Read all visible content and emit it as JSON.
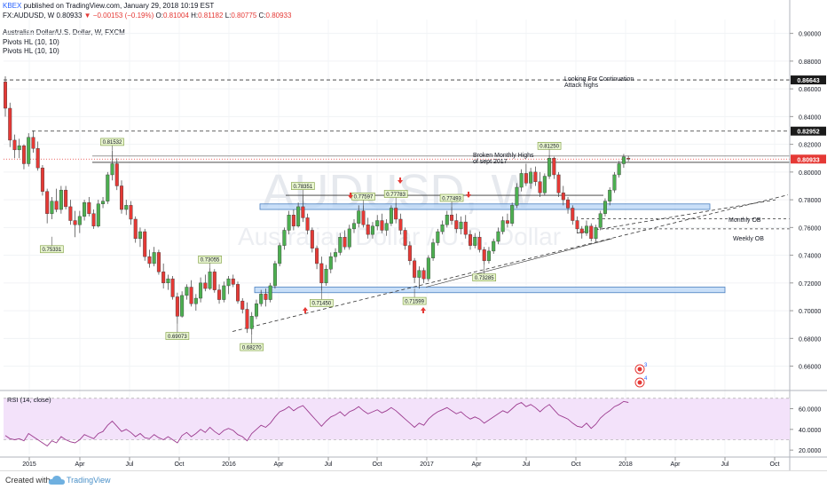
{
  "header": {
    "publisher": "KBEX",
    "published_text": "published on TradingView.com, January 29, 2018 10:19 EST",
    "symbol": "FX:AUDUSD, W",
    "last": "0.80933",
    "change": "−0.00153 (−0.19%)",
    "o_label": "O:",
    "o_value": "0.81004",
    "h_label": "H:",
    "h_value": "0.81182",
    "l_label": "L:",
    "l_value": "0.80775",
    "c_label": "C:",
    "c_value": "0.80933",
    "title": "Australian Dollar/U.S. Dollar, W, FXCM",
    "indicator1": "Pivots HL (10, 10)",
    "indicator2": "Pivots HL (10, 10)"
  },
  "watermark": {
    "ticker": "AUDUSD, W",
    "name": "Australian Dollar / U.S. Dollar"
  },
  "colors": {
    "up": "#4caf50",
    "down": "#e53935",
    "zone": "#b7d4f5",
    "zone_border": "#4a7fc0",
    "rsi": "#9c3b8f",
    "rsi_band": "#f3e2fa"
  },
  "annotations": {
    "continuation": [
      "Looking For Continuation",
      "Attack highs"
    ],
    "broken": [
      "Broken Monthly Highs",
      "of sept 2017"
    ],
    "monthly_ob": "Monthly OB",
    "weekly_ob": "Weekly OB"
  },
  "rsi": {
    "label": "RSI (14, close)",
    "ticks": [
      "60.0000",
      "40.0000",
      "20.0000"
    ]
  },
  "footer": {
    "created": "Created with",
    "brand": "TradingView"
  },
  "chart_data": {
    "type": "candlestick",
    "title": "Australian Dollar/U.S. Dollar, W, FXCM",
    "y_ticks": [
      "0.90000",
      "0.88000",
      "0.86000",
      "0.84000",
      "0.82000",
      "0.80000",
      "0.78000",
      "0.76000",
      "0.74000",
      "0.72000",
      "0.70000",
      "0.68000",
      "0.66000"
    ],
    "ylim": [
      0.645,
      0.91
    ],
    "x_labels": [
      "2015",
      "Apr",
      "Jul",
      "Oct",
      "2016",
      "Apr",
      "Jul",
      "Oct",
      "2017",
      "Apr",
      "Jul",
      "Oct",
      "2018",
      "Apr",
      "Jul",
      "Oct"
    ],
    "price_levels": [
      {
        "label": "0.86643",
        "value": 0.86643
      },
      {
        "label": "0.82952",
        "value": 0.82952
      },
      {
        "label": "0.80933",
        "value": 0.80933,
        "style": "last"
      }
    ],
    "pivot_labels": [
      {
        "label": "0.81532",
        "value": 0.81532,
        "kind": "high"
      },
      {
        "label": "0.75331",
        "value": 0.75331,
        "kind": "low"
      },
      {
        "label": "0.69073",
        "value": 0.69073,
        "kind": "low"
      },
      {
        "label": "0.73055",
        "value": 0.73055,
        "kind": "high"
      },
      {
        "label": "0.68270",
        "value": 0.6827,
        "kind": "low"
      },
      {
        "label": "0.78351",
        "value": 0.78351,
        "kind": "high"
      },
      {
        "label": "0.71450",
        "value": 0.7145,
        "kind": "low"
      },
      {
        "label": "0.77597",
        "value": 0.77597,
        "kind": "high"
      },
      {
        "label": "0.77783",
        "value": 0.77783,
        "kind": "high"
      },
      {
        "label": "0.71599",
        "value": 0.71599,
        "kind": "low"
      },
      {
        "label": "0.77493",
        "value": 0.77493,
        "kind": "high"
      },
      {
        "label": "0.73285",
        "value": 0.73285,
        "kind": "low"
      },
      {
        "label": "0.81250",
        "value": 0.8125,
        "kind": "high"
      }
    ],
    "zones": [
      {
        "name": "upper-zone",
        "from": 0.773,
        "to": 0.777
      },
      {
        "name": "lower-zone",
        "from": 0.713,
        "to": 0.717
      }
    ],
    "candles": [
      [
        0.865,
        0.869,
        0.84,
        0.846
      ],
      [
        0.846,
        0.85,
        0.818,
        0.823
      ],
      [
        0.823,
        0.827,
        0.81,
        0.816
      ],
      [
        0.816,
        0.824,
        0.81,
        0.819
      ],
      [
        0.819,
        0.82,
        0.802,
        0.806
      ],
      [
        0.806,
        0.828,
        0.804,
        0.825
      ],
      [
        0.825,
        0.83,
        0.814,
        0.817
      ],
      [
        0.817,
        0.822,
        0.801,
        0.803
      ],
      [
        0.803,
        0.805,
        0.783,
        0.786
      ],
      [
        0.786,
        0.788,
        0.763,
        0.77
      ],
      [
        0.77,
        0.782,
        0.766,
        0.779
      ],
      [
        0.779,
        0.788,
        0.771,
        0.773
      ],
      [
        0.773,
        0.79,
        0.77,
        0.787
      ],
      [
        0.787,
        0.79,
        0.773,
        0.775
      ],
      [
        0.775,
        0.78,
        0.762,
        0.765
      ],
      [
        0.765,
        0.772,
        0.753,
        0.762
      ],
      [
        0.762,
        0.772,
        0.756,
        0.768
      ],
      [
        0.768,
        0.78,
        0.765,
        0.778
      ],
      [
        0.778,
        0.782,
        0.768,
        0.77
      ],
      [
        0.77,
        0.773,
        0.759,
        0.761
      ],
      [
        0.761,
        0.78,
        0.76,
        0.777
      ],
      [
        0.777,
        0.782,
        0.774,
        0.779
      ],
      [
        0.779,
        0.8,
        0.777,
        0.798
      ],
      [
        0.798,
        0.8153,
        0.794,
        0.806
      ],
      [
        0.806,
        0.81,
        0.787,
        0.79
      ],
      [
        0.79,
        0.794,
        0.77,
        0.773
      ],
      [
        0.773,
        0.78,
        0.769,
        0.776
      ],
      [
        0.776,
        0.779,
        0.762,
        0.766
      ],
      [
        0.766,
        0.768,
        0.749,
        0.752
      ],
      [
        0.752,
        0.76,
        0.746,
        0.757
      ],
      [
        0.757,
        0.759,
        0.736,
        0.739
      ],
      [
        0.739,
        0.744,
        0.731,
        0.734
      ],
      [
        0.734,
        0.746,
        0.732,
        0.742
      ],
      [
        0.742,
        0.744,
        0.726,
        0.728
      ],
      [
        0.728,
        0.734,
        0.716,
        0.72
      ],
      [
        0.72,
        0.726,
        0.715,
        0.723
      ],
      [
        0.723,
        0.725,
        0.708,
        0.71
      ],
      [
        0.71,
        0.713,
        0.6907,
        0.696
      ],
      [
        0.696,
        0.714,
        0.695,
        0.711
      ],
      [
        0.711,
        0.719,
        0.708,
        0.717
      ],
      [
        0.717,
        0.722,
        0.703,
        0.705
      ],
      [
        0.705,
        0.712,
        0.7,
        0.709
      ],
      [
        0.709,
        0.724,
        0.706,
        0.72
      ],
      [
        0.72,
        0.726,
        0.714,
        0.716
      ],
      [
        0.716,
        0.7306,
        0.715,
        0.728
      ],
      [
        0.728,
        0.73,
        0.713,
        0.715
      ],
      [
        0.715,
        0.719,
        0.705,
        0.708
      ],
      [
        0.708,
        0.721,
        0.706,
        0.718
      ],
      [
        0.718,
        0.725,
        0.712,
        0.723
      ],
      [
        0.723,
        0.726,
        0.717,
        0.719
      ],
      [
        0.719,
        0.721,
        0.705,
        0.707
      ],
      [
        0.707,
        0.709,
        0.698,
        0.701
      ],
      [
        0.701,
        0.706,
        0.684,
        0.687
      ],
      [
        0.687,
        0.699,
        0.6827,
        0.696
      ],
      [
        0.696,
        0.708,
        0.694,
        0.705
      ],
      [
        0.705,
        0.715,
        0.703,
        0.712
      ],
      [
        0.712,
        0.716,
        0.703,
        0.708
      ],
      [
        0.708,
        0.72,
        0.706,
        0.718
      ],
      [
        0.718,
        0.736,
        0.716,
        0.734
      ],
      [
        0.734,
        0.749,
        0.732,
        0.747
      ],
      [
        0.747,
        0.76,
        0.744,
        0.758
      ],
      [
        0.758,
        0.772,
        0.755,
        0.769
      ],
      [
        0.769,
        0.773,
        0.758,
        0.761
      ],
      [
        0.761,
        0.778,
        0.76,
        0.775
      ],
      [
        0.775,
        0.7835,
        0.764,
        0.767
      ],
      [
        0.767,
        0.77,
        0.755,
        0.758
      ],
      [
        0.758,
        0.76,
        0.742,
        0.745
      ],
      [
        0.745,
        0.747,
        0.73,
        0.734
      ],
      [
        0.734,
        0.739,
        0.7145,
        0.72
      ],
      [
        0.72,
        0.733,
        0.718,
        0.73
      ],
      [
        0.73,
        0.742,
        0.727,
        0.739
      ],
      [
        0.739,
        0.745,
        0.735,
        0.742
      ],
      [
        0.742,
        0.756,
        0.74,
        0.753
      ],
      [
        0.753,
        0.758,
        0.744,
        0.746
      ],
      [
        0.746,
        0.762,
        0.744,
        0.759
      ],
      [
        0.759,
        0.766,
        0.756,
        0.763
      ],
      [
        0.763,
        0.776,
        0.76,
        0.772
      ],
      [
        0.772,
        0.776,
        0.76,
        0.762
      ],
      [
        0.762,
        0.767,
        0.752,
        0.755
      ],
      [
        0.755,
        0.764,
        0.752,
        0.761
      ],
      [
        0.761,
        0.769,
        0.758,
        0.765
      ],
      [
        0.765,
        0.77,
        0.756,
        0.758
      ],
      [
        0.758,
        0.766,
        0.754,
        0.763
      ],
      [
        0.763,
        0.776,
        0.761,
        0.774
      ],
      [
        0.774,
        0.7778,
        0.763,
        0.766
      ],
      [
        0.766,
        0.77,
        0.755,
        0.758
      ],
      [
        0.758,
        0.76,
        0.744,
        0.747
      ],
      [
        0.747,
        0.75,
        0.733,
        0.736
      ],
      [
        0.736,
        0.738,
        0.72,
        0.724
      ],
      [
        0.724,
        0.732,
        0.716,
        0.729
      ],
      [
        0.729,
        0.731,
        0.72,
        0.723
      ],
      [
        0.723,
        0.74,
        0.721,
        0.738
      ],
      [
        0.738,
        0.752,
        0.736,
        0.749
      ],
      [
        0.749,
        0.759,
        0.747,
        0.757
      ],
      [
        0.757,
        0.765,
        0.755,
        0.762
      ],
      [
        0.762,
        0.772,
        0.76,
        0.769
      ],
      [
        0.769,
        0.7749,
        0.762,
        0.765
      ],
      [
        0.765,
        0.77,
        0.756,
        0.759
      ],
      [
        0.759,
        0.768,
        0.755,
        0.764
      ],
      [
        0.764,
        0.769,
        0.752,
        0.755
      ],
      [
        0.755,
        0.758,
        0.744,
        0.747
      ],
      [
        0.747,
        0.756,
        0.745,
        0.753
      ],
      [
        0.753,
        0.757,
        0.742,
        0.744
      ],
      [
        0.744,
        0.746,
        0.7329,
        0.736
      ],
      [
        0.736,
        0.746,
        0.734,
        0.743
      ],
      [
        0.743,
        0.752,
        0.741,
        0.75
      ],
      [
        0.75,
        0.76,
        0.748,
        0.757
      ],
      [
        0.757,
        0.768,
        0.755,
        0.765
      ],
      [
        0.765,
        0.77,
        0.76,
        0.763
      ],
      [
        0.763,
        0.778,
        0.761,
        0.776
      ],
      [
        0.776,
        0.792,
        0.774,
        0.789
      ],
      [
        0.789,
        0.802,
        0.786,
        0.799
      ],
      [
        0.799,
        0.806,
        0.79,
        0.792
      ],
      [
        0.792,
        0.803,
        0.788,
        0.8
      ],
      [
        0.8,
        0.804,
        0.79,
        0.793
      ],
      [
        0.793,
        0.8,
        0.782,
        0.785
      ],
      [
        0.785,
        0.799,
        0.783,
        0.797
      ],
      [
        0.797,
        0.8125,
        0.795,
        0.81
      ],
      [
        0.81,
        0.811,
        0.795,
        0.798
      ],
      [
        0.798,
        0.8,
        0.782,
        0.785
      ],
      [
        0.785,
        0.79,
        0.776,
        0.78
      ],
      [
        0.78,
        0.782,
        0.77,
        0.774
      ],
      [
        0.774,
        0.776,
        0.762,
        0.765
      ],
      [
        0.765,
        0.768,
        0.756,
        0.759
      ],
      [
        0.759,
        0.761,
        0.752,
        0.756
      ],
      [
        0.756,
        0.765,
        0.754,
        0.761
      ],
      [
        0.761,
        0.763,
        0.75,
        0.752
      ],
      [
        0.752,
        0.762,
        0.75,
        0.76
      ],
      [
        0.76,
        0.772,
        0.758,
        0.77
      ],
      [
        0.77,
        0.781,
        0.768,
        0.779
      ],
      [
        0.779,
        0.789,
        0.776,
        0.787
      ],
      [
        0.787,
        0.8,
        0.785,
        0.798
      ],
      [
        0.798,
        0.808,
        0.796,
        0.806
      ],
      [
        0.806,
        0.813,
        0.803,
        0.811
      ],
      [
        0.81,
        0.8118,
        0.8077,
        0.8093
      ]
    ],
    "rsi": [
      34,
      31,
      30,
      31,
      29,
      36,
      33,
      30,
      27,
      24,
      29,
      27,
      33,
      30,
      28,
      27,
      30,
      35,
      33,
      31,
      36,
      38,
      44,
      48,
      43,
      38,
      40,
      37,
      33,
      36,
      32,
      31,
      35,
      32,
      30,
      33,
      30,
      27,
      34,
      37,
      33,
      36,
      40,
      37,
      42,
      38,
      35,
      39,
      41,
      39,
      35,
      33,
      29,
      36,
      40,
      44,
      42,
      46,
      52,
      57,
      59,
      62,
      58,
      61,
      63,
      58,
      53,
      48,
      43,
      48,
      52,
      54,
      57,
      53,
      57,
      59,
      62,
      58,
      55,
      57,
      59,
      56,
      58,
      61,
      58,
      54,
      50,
      46,
      42,
      46,
      44,
      50,
      54,
      57,
      59,
      61,
      58,
      55,
      57,
      53,
      50,
      52,
      50,
      46,
      49,
      52,
      55,
      58,
      56,
      60,
      64,
      66,
      62,
      64,
      61,
      57,
      61,
      64,
      59,
      54,
      52,
      50,
      46,
      43,
      42,
      46,
      41,
      45,
      51,
      55,
      58,
      62,
      64,
      67,
      66
    ]
  }
}
